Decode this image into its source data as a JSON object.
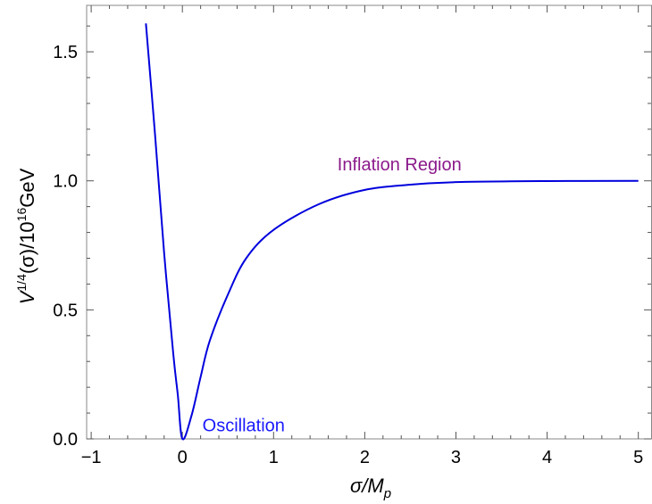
{
  "chart_data": {
    "type": "line",
    "title": "",
    "xlabel": {
      "base": "σ/M",
      "sub": "p"
    },
    "ylabel": {
      "part1": "V",
      "sup1": "1/4",
      "part2": "(σ)/10",
      "sup2": "16",
      "part3": "GeV"
    },
    "xlim": [
      -1.05,
      5.15
    ],
    "ylim": [
      0,
      1.68
    ],
    "x_ticks": [
      {
        "value": -1,
        "label": "−1"
      },
      {
        "value": 0,
        "label": "0"
      },
      {
        "value": 1,
        "label": "1"
      },
      {
        "value": 2,
        "label": "2"
      },
      {
        "value": 3,
        "label": "3"
      },
      {
        "value": 4,
        "label": "4"
      },
      {
        "value": 5,
        "label": "5"
      }
    ],
    "y_ticks": [
      {
        "value": 0.0,
        "label": "0.0"
      },
      {
        "value": 0.5,
        "label": "0.5"
      },
      {
        "value": 1.0,
        "label": "1.0"
      },
      {
        "value": 1.5,
        "label": "1.5"
      }
    ],
    "grid": false,
    "series": [
      {
        "color": "#0000dd",
        "x_range": [
          -0.4,
          5.0
        ],
        "points": [
          [
            -0.4,
            1.61
          ],
          [
            -0.3,
            1.18
          ],
          [
            -0.2,
            0.72
          ],
          [
            -0.1,
            0.33
          ],
          [
            -0.05,
            0.17
          ],
          [
            0.0,
            0.0
          ],
          [
            0.1,
            0.09
          ],
          [
            0.2,
            0.24
          ],
          [
            0.3,
            0.38
          ],
          [
            0.5,
            0.56
          ],
          [
            0.7,
            0.7
          ],
          [
            1.0,
            0.81
          ],
          [
            1.5,
            0.91
          ],
          [
            2.0,
            0.965
          ],
          [
            2.5,
            0.985
          ],
          [
            3.0,
            0.995
          ],
          [
            4.0,
            0.999
          ],
          [
            5.0,
            1.0
          ]
        ]
      }
    ],
    "annotations": [
      {
        "text": "Oscillation",
        "x": 0.22,
        "y": 0.03,
        "color": "#1a1aff"
      },
      {
        "text": "Inflation Region",
        "x": 1.7,
        "y": 1.04,
        "color": "#8b1a8b"
      }
    ]
  }
}
